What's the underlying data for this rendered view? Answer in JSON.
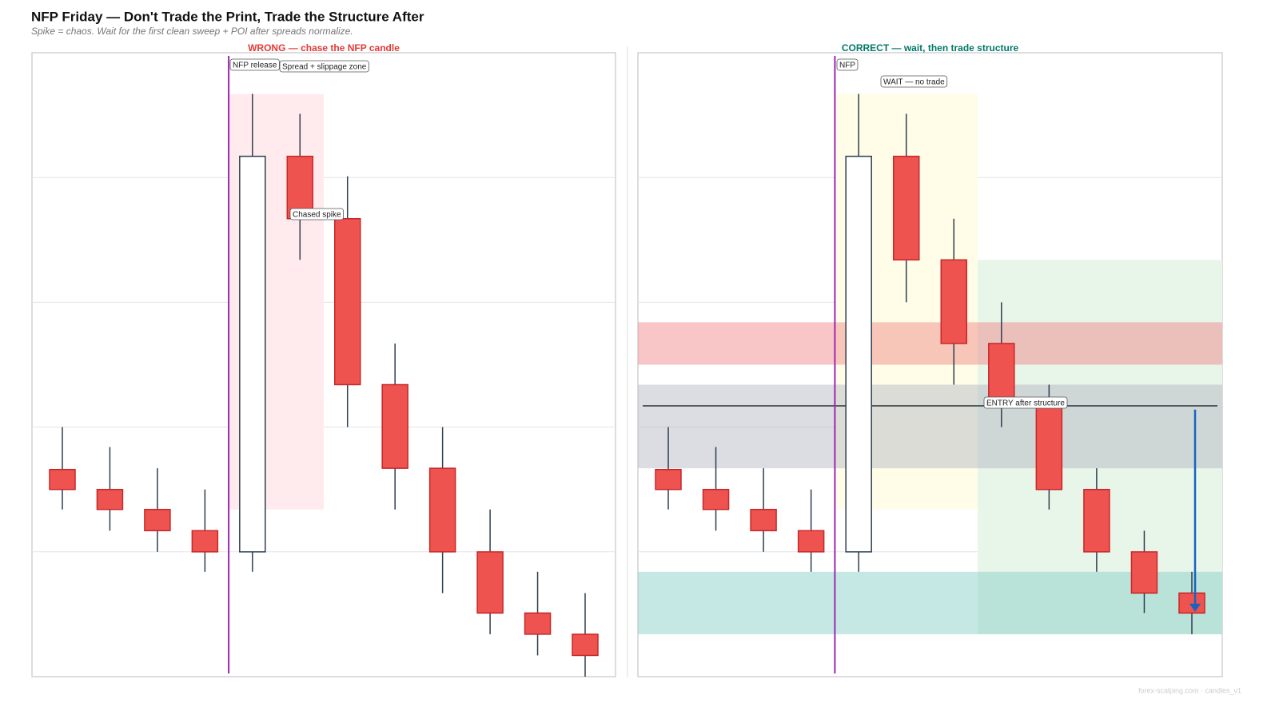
{
  "title": "NFP Friday — Don't Trade the Print, Trade the Structure After",
  "subtitle": "Spike = chaos. Wait for the first clean sweep + POI after spreads normalize.",
  "footer": "forex-scalping.com · candles_v1",
  "chart_data": [
    {
      "type": "candlestick",
      "title": "WRONG — chase the NFP candle",
      "title_color": "#e53935",
      "ylim": [
        0,
        5
      ],
      "yticks": [
        1,
        2,
        3,
        4
      ],
      "grid": true,
      "colors": {
        "up": "#ffffff",
        "down": "#ef5350"
      },
      "open": [
        1.66,
        1.5,
        1.34,
        1.17,
        1.0,
        4.17,
        3.67,
        2.34,
        1.67,
        1.0,
        0.51,
        0.34
      ],
      "high": [
        2.0,
        1.84,
        1.67,
        1.5,
        4.67,
        4.51,
        4.01,
        2.67,
        2.0,
        1.34,
        0.84,
        0.67
      ],
      "low": [
        1.34,
        1.17,
        1.0,
        0.84,
        0.84,
        3.34,
        2.0,
        1.34,
        0.67,
        0.34,
        0.17,
        0.0
      ],
      "close": [
        1.5,
        1.34,
        1.17,
        1.0,
        4.17,
        3.67,
        2.34,
        1.67,
        1.0,
        0.51,
        0.34,
        0.17
      ],
      "event_x": 3.5,
      "event_color": "#9c27b0",
      "zones": [
        {
          "x": [
            3.5,
            5.5
          ],
          "y": [
            4.67,
            1.34
          ],
          "color": "#ffebee"
        }
      ],
      "annotations": [
        "NFP release",
        "Spread + slippage zone",
        "Chased spike"
      ]
    },
    {
      "type": "candlestick",
      "title": "CORRECT — wait, then trade structure",
      "title_color": "#00796b",
      "ylim": [
        0,
        5
      ],
      "yticks": [
        1,
        2,
        3,
        4
      ],
      "grid": true,
      "colors": {
        "up": "#ffffff",
        "down": "#ef5350"
      },
      "open": [
        1.66,
        1.5,
        1.34,
        1.17,
        1.0,
        4.17,
        3.34,
        2.67,
        2.17,
        1.5,
        1.0,
        0.67
      ],
      "high": [
        2.0,
        1.84,
        1.67,
        1.5,
        4.67,
        4.51,
        3.67,
        3.0,
        2.34,
        1.67,
        1.17,
        0.84
      ],
      "low": [
        1.34,
        1.17,
        1.0,
        0.84,
        0.84,
        3.0,
        2.34,
        2.0,
        1.34,
        0.84,
        0.51,
        0.34
      ],
      "close": [
        1.5,
        1.34,
        1.17,
        1.0,
        4.17,
        3.34,
        2.67,
        2.17,
        1.5,
        1.0,
        0.67,
        0.51
      ],
      "event_x": 3.5,
      "event_color": "#9c27b0",
      "zones": [
        {
          "x": [
            3.5,
            6.5
          ],
          "y": [
            4.67,
            1.34
          ],
          "color": "#fffde7"
        },
        {
          "x": [
            6.5,
            11.67
          ],
          "y": [
            3.34,
            0.34
          ],
          "color": "#e8f5e9"
        },
        {
          "y": [
            2.84,
            2.5
          ],
          "color": "#f08080"
        },
        {
          "y": [
            2.34,
            1.67
          ],
          "color": "#b0b3be"
        },
        {
          "y": [
            0.84,
            0.34
          ],
          "color": "#80cbc4"
        }
      ],
      "entry_y": 2.17,
      "arrow": {
        "x": 11,
        "from": 2.14,
        "to": 0.52,
        "color": "#1565c0"
      },
      "annotations": [
        "NFP",
        "WAIT — no trade",
        "ENTRY after structure"
      ]
    }
  ]
}
